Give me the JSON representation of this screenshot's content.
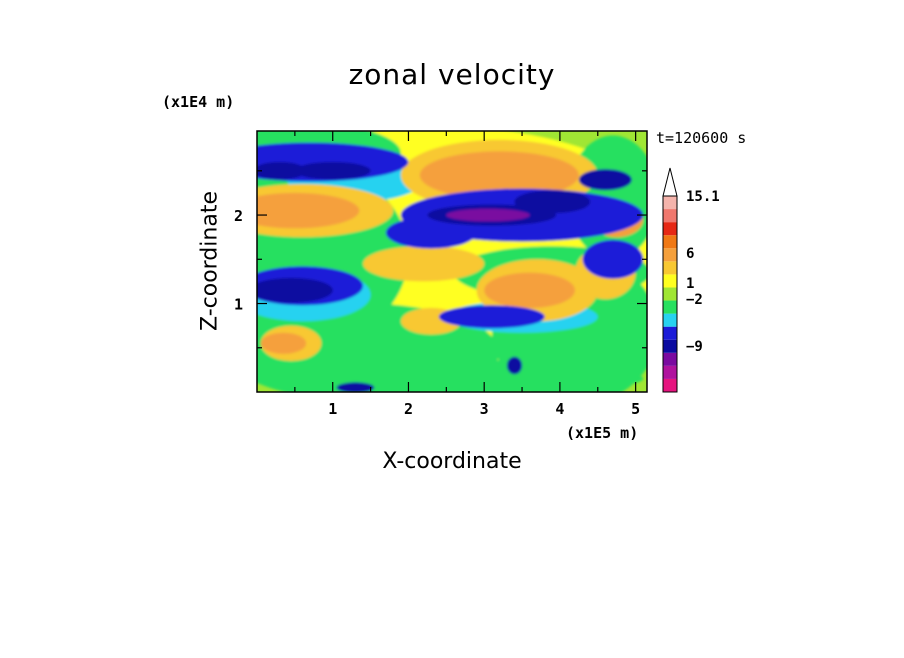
{
  "chart_data": {
    "type": "heatmap",
    "title": "zonal velocity",
    "xlabel": "X-coordinate",
    "ylabel": "Z-coordinate",
    "x_multiplier": "(x1E5 m)",
    "y_multiplier": "(x1E4 m)",
    "timestamp": "t=120600 s",
    "xlim": [
      0,
      5.15
    ],
    "ylim": [
      0,
      2.95
    ],
    "xticks": [
      1,
      2,
      3,
      4,
      5
    ],
    "yticks": [
      1,
      2
    ],
    "xtick_labels": [
      "1",
      "2",
      "3",
      "4",
      "5"
    ],
    "ytick_labels": [
      "1",
      "2"
    ],
    "colorbar": {
      "max_label": "15.1",
      "labels": [
        "15.1",
        "6",
        "1",
        "−2",
        "−9"
      ],
      "colors": [
        "#e6147f",
        "#b0129e",
        "#7a0aa0",
        "#0a0aa0",
        "#1c1cd8",
        "#28d2f0",
        "#28e060",
        "#a0e634",
        "#ffff20",
        "#f8c832",
        "#f5a03c",
        "#f07814",
        "#e62814",
        "#f0786e",
        "#f5b4ac"
      ]
    },
    "regions": [
      {
        "cx": 2.45,
        "cy": 1.4,
        "rx": 3.5,
        "ry": 1.6,
        "level": 8
      },
      {
        "cx": 0.7,
        "cy": 1.55,
        "rx": 1.3,
        "ry": 1.0,
        "level": 6
      },
      {
        "cx": 1.4,
        "cy": 0.45,
        "rx": 1.8,
        "ry": 0.55,
        "level": 6
      },
      {
        "cx": 4.2,
        "cy": 0.7,
        "rx": 1.1,
        "ry": 0.85,
        "level": 6
      },
      {
        "cx": 4.7,
        "cy": 2.2,
        "rx": 0.6,
        "ry": 0.7,
        "level": 6
      },
      {
        "cx": 0.5,
        "cy": 2.7,
        "rx": 1.4,
        "ry": 0.35,
        "level": 6
      },
      {
        "cx": 3.9,
        "cy": 1.35,
        "rx": 1.3,
        "ry": 0.3,
        "level": 6
      },
      {
        "cx": 2.5,
        "cy": 0.15,
        "rx": 2.6,
        "ry": 0.18,
        "level": 6
      },
      {
        "cx": 3.6,
        "cy": 0.2,
        "rx": 0.7,
        "ry": 0.2,
        "level": 6
      },
      {
        "cx": 1.3,
        "cy": 2.4,
        "rx": 0.9,
        "ry": 0.25,
        "level": 5
      },
      {
        "cx": 0.6,
        "cy": 1.1,
        "rx": 0.9,
        "ry": 0.3,
        "level": 5
      },
      {
        "cx": 3.5,
        "cy": 0.85,
        "rx": 1.0,
        "ry": 0.18,
        "level": 5
      },
      {
        "cx": 3.2,
        "cy": 2.45,
        "rx": 1.3,
        "ry": 0.4,
        "level": 9
      },
      {
        "cx": 0.6,
        "cy": 2.05,
        "rx": 1.2,
        "ry": 0.3,
        "level": 9
      },
      {
        "cx": 2.2,
        "cy": 1.45,
        "rx": 0.8,
        "ry": 0.2,
        "level": 9
      },
      {
        "cx": 3.7,
        "cy": 1.15,
        "rx": 0.8,
        "ry": 0.35,
        "level": 9
      },
      {
        "cx": 4.6,
        "cy": 1.35,
        "rx": 0.4,
        "ry": 0.3,
        "level": 9
      },
      {
        "cx": 0.45,
        "cy": 0.55,
        "rx": 0.4,
        "ry": 0.2,
        "level": 9
      },
      {
        "cx": 2.3,
        "cy": 0.8,
        "rx": 0.4,
        "ry": 0.15,
        "level": 9
      },
      {
        "cx": 3.2,
        "cy": 2.45,
        "rx": 1.05,
        "ry": 0.27,
        "level": 10
      },
      {
        "cx": 0.5,
        "cy": 2.05,
        "rx": 0.85,
        "ry": 0.2,
        "level": 10
      },
      {
        "cx": 3.6,
        "cy": 1.15,
        "rx": 0.6,
        "ry": 0.2,
        "level": 10
      },
      {
        "cx": 0.35,
        "cy": 0.55,
        "rx": 0.3,
        "ry": 0.12,
        "level": 10
      },
      {
        "cx": 4.75,
        "cy": 1.95,
        "rx": 0.35,
        "ry": 0.2,
        "level": 10
      },
      {
        "cx": 0.7,
        "cy": 2.6,
        "rx": 1.3,
        "ry": 0.22,
        "level": 4
      },
      {
        "cx": 3.5,
        "cy": 2.0,
        "rx": 1.6,
        "ry": 0.3,
        "level": 4
      },
      {
        "cx": 0.6,
        "cy": 1.2,
        "rx": 0.8,
        "ry": 0.22,
        "level": 4
      },
      {
        "cx": 3.1,
        "cy": 0.85,
        "rx": 0.7,
        "ry": 0.13,
        "level": 4
      },
      {
        "cx": 4.7,
        "cy": 1.5,
        "rx": 0.4,
        "ry": 0.22,
        "level": 4
      },
      {
        "cx": 2.3,
        "cy": 1.8,
        "rx": 0.6,
        "ry": 0.18,
        "level": 4
      },
      {
        "cx": 0.45,
        "cy": 1.15,
        "rx": 0.55,
        "ry": 0.14,
        "level": 3
      },
      {
        "cx": 1.0,
        "cy": 2.5,
        "rx": 0.5,
        "ry": 0.1,
        "level": 3
      },
      {
        "cx": 0.3,
        "cy": 2.5,
        "rx": 0.35,
        "ry": 0.1,
        "level": 3
      },
      {
        "cx": 3.1,
        "cy": 2.0,
        "rx": 0.85,
        "ry": 0.12,
        "level": 3
      },
      {
        "cx": 3.9,
        "cy": 2.15,
        "rx": 0.5,
        "ry": 0.13,
        "level": 3
      },
      {
        "cx": 4.6,
        "cy": 2.4,
        "rx": 0.35,
        "ry": 0.12,
        "level": 3
      },
      {
        "cx": 3.4,
        "cy": 0.3,
        "rx": 0.1,
        "ry": 0.1,
        "level": 3
      },
      {
        "cx": 1.3,
        "cy": 0.05,
        "rx": 0.25,
        "ry": 0.06,
        "level": 3
      },
      {
        "cx": 3.05,
        "cy": 2.0,
        "rx": 0.55,
        "ry": 0.07,
        "level": 2
      }
    ]
  }
}
